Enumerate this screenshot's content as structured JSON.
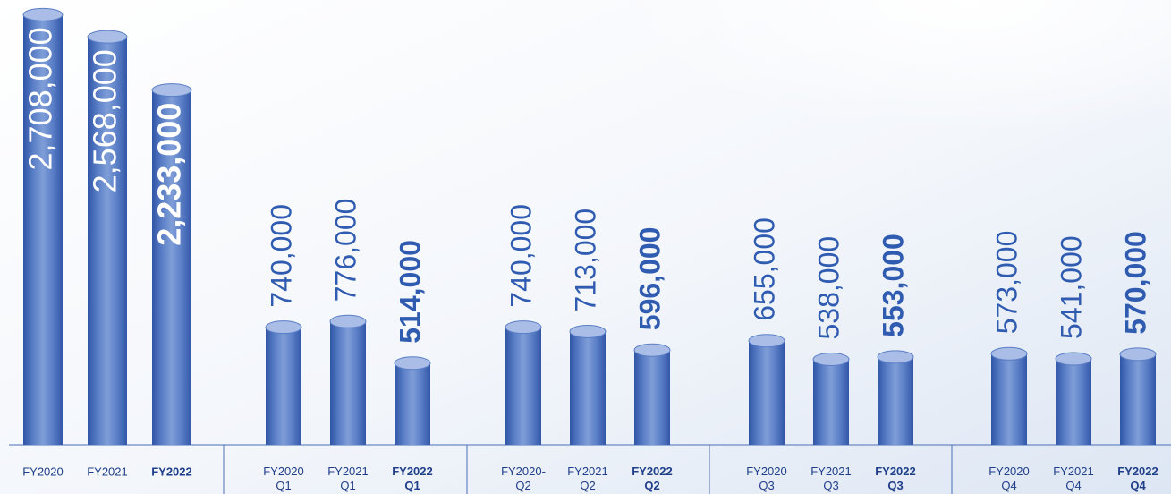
{
  "chart_data": {
    "type": "bar",
    "categories": [
      "FY2020",
      "FY2021",
      "FY2022",
      "FY2020 Q1",
      "FY2021 Q1",
      "FY2022 Q1",
      "FY2020- Q2",
      "FY2021 Q2",
      "FY2022 Q2",
      "FY2020 Q3",
      "FY2021 Q3",
      "FY2022 Q3",
      "FY2020 Q4",
      "FY2021 Q4",
      "FY2022 Q4"
    ],
    "values": [
      2708000,
      2568000,
      2233000,
      740000,
      776000,
      514000,
      740000,
      713000,
      596000,
      655000,
      538000,
      553000,
      573000,
      541000,
      570000
    ],
    "value_labels": [
      "2,708,000",
      "2,568,000",
      "2,233,000",
      "740,000",
      "776,000",
      "514,000",
      "740,000",
      "713,000",
      "596,000",
      "655,000",
      "538,000",
      "553,000",
      "573,000",
      "541,000",
      "570,000"
    ],
    "color": "#5a7ec6",
    "ylim": [
      0,
      2800000
    ]
  }
}
